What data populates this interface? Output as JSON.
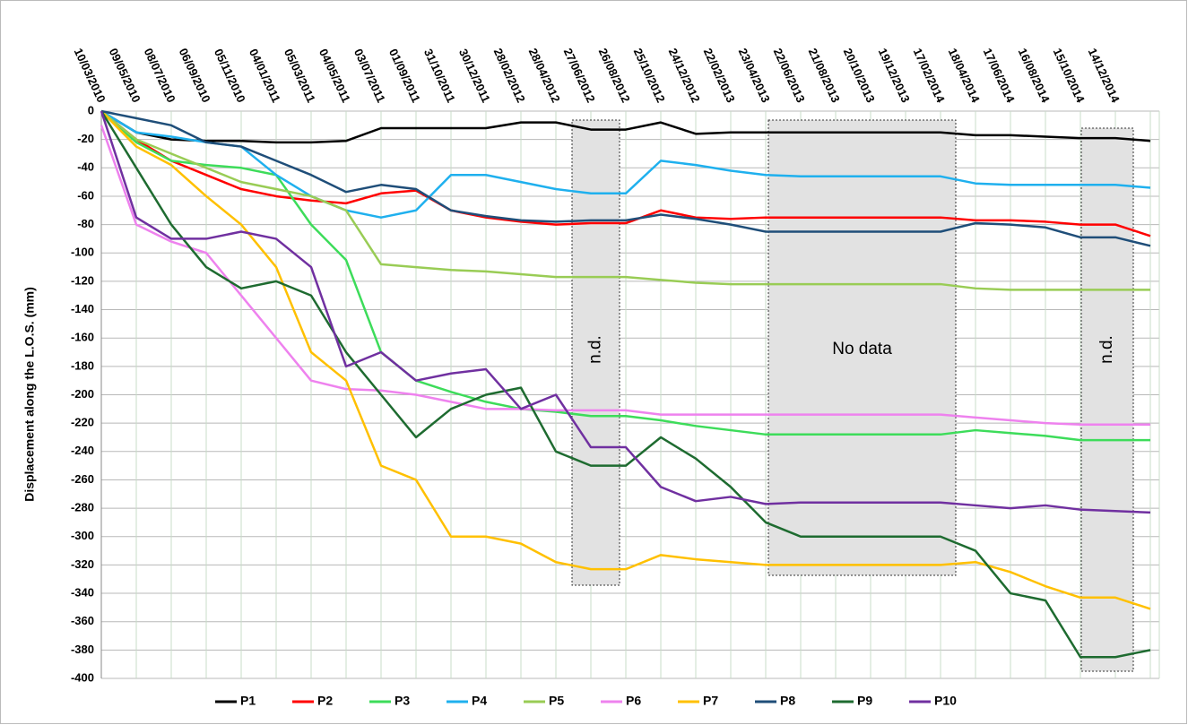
{
  "chart_data": {
    "type": "line",
    "ylabel": "Displacement along the L.O.S. (mm)",
    "categories": [
      "10/03/2010",
      "09/05/2010",
      "08/07/2010",
      "06/09/2010",
      "05/11/2010",
      "04/01/2011",
      "05/03/2011",
      "04/05/2011",
      "03/07/2011",
      "01/09/2011",
      "31/10/2011",
      "30/12/2011",
      "28/02/2012",
      "28/04/2012",
      "27/06/2012",
      "26/08/2012",
      "25/10/2012",
      "24/12/2012",
      "22/02/2013",
      "23/04/2013",
      "22/06/2013",
      "21/08/2013",
      "20/10/2013",
      "19/12/2013",
      "17/02/2014",
      "18/04/2014",
      "17/06/2014",
      "16/08/2014",
      "15/10/2014",
      "14/12/2014",
      null
    ],
    "ylim": [
      0,
      -400
    ],
    "yticks": [
      0,
      -20,
      -40,
      -60,
      -80,
      -100,
      -120,
      -140,
      -160,
      -180,
      -200,
      -220,
      -240,
      -260,
      -280,
      -300,
      -320,
      -340,
      -360,
      -380,
      -400
    ],
    "grid": true,
    "legend": "bottom",
    "annotations": [
      "n.d.",
      "No data",
      "n.d."
    ],
    "series": [
      {
        "name": "P1",
        "color": "#000000",
        "values": [
          0,
          -15,
          -20,
          -21,
          -21,
          -22,
          -22,
          -21,
          -12,
          -12,
          -12,
          -12,
          -8,
          -8,
          -13,
          -13,
          -8,
          -16,
          -15,
          -15,
          -15,
          -15,
          -15,
          -15,
          -15,
          -17,
          -17,
          -18,
          -19,
          -19,
          -21
        ]
      },
      {
        "name": "P2",
        "color": "#ff0000",
        "values": [
          0,
          -20,
          -35,
          -45,
          -55,
          -60,
          -63,
          -65,
          -58,
          -56,
          -70,
          -75,
          -78,
          -80,
          -79,
          -79,
          -70,
          -75,
          -76,
          -75,
          -75,
          -75,
          -75,
          -75,
          -75,
          -77,
          -77,
          -78,
          -80,
          -80,
          -88
        ]
      },
      {
        "name": "P3",
        "color": "#3ddc5a",
        "values": [
          0,
          -22,
          -35,
          -38,
          -40,
          -45,
          -80,
          -105,
          -170,
          -190,
          -198,
          -205,
          -210,
          -212,
          -215,
          -215,
          -218,
          -222,
          -225,
          -228,
          -228,
          -228,
          -228,
          -228,
          -228,
          -225,
          -227,
          -229,
          -232,
          -232,
          -232
        ]
      },
      {
        "name": "P4",
        "color": "#1fb0ee",
        "values": [
          0,
          -15,
          -18,
          -22,
          -25,
          -45,
          -60,
          -70,
          -75,
          -70,
          -45,
          -45,
          -50,
          -55,
          -58,
          -58,
          -35,
          -38,
          -42,
          -45,
          -46,
          -46,
          -46,
          -46,
          -46,
          -51,
          -52,
          -52,
          -52,
          -52,
          -54
        ]
      },
      {
        "name": "P5",
        "color": "#99cc55",
        "values": [
          0,
          -20,
          -30,
          -40,
          -50,
          -55,
          -60,
          -70,
          -108,
          -110,
          -112,
          -113,
          -115,
          -117,
          -117,
          -117,
          -119,
          -121,
          -122,
          -122,
          -122,
          -122,
          -122,
          -122,
          -122,
          -125,
          -126,
          -126,
          -126,
          -126,
          -126
        ]
      },
      {
        "name": "P6",
        "color": "#ee82ee",
        "values": [
          -10,
          -80,
          -92,
          -100,
          -130,
          -160,
          -190,
          -196,
          -197,
          -200,
          -205,
          -210,
          -210,
          -211,
          -211,
          -211,
          -214,
          -214,
          -214,
          -214,
          -214,
          -214,
          -214,
          -214,
          -214,
          -216,
          -218,
          -220,
          -221,
          -221,
          -221
        ]
      },
      {
        "name": "P7",
        "color": "#ffc000",
        "values": [
          0,
          -25,
          -38,
          -60,
          -80,
          -110,
          -170,
          -190,
          -250,
          -260,
          -300,
          -300,
          -305,
          -318,
          -323,
          -323,
          -313,
          -316,
          -318,
          -320,
          -320,
          -320,
          -320,
          -320,
          -320,
          -318,
          -325,
          -335,
          -343,
          -343,
          -351
        ]
      },
      {
        "name": "P8",
        "color": "#1f4e79",
        "values": [
          0,
          -5,
          -10,
          -22,
          -25,
          -35,
          -45,
          -57,
          -52,
          -55,
          -70,
          -74,
          -77,
          -78,
          -77,
          -77,
          -73,
          -76,
          -80,
          -85,
          -85,
          -85,
          -85,
          -85,
          -85,
          -79,
          -80,
          -82,
          -89,
          -89,
          -95
        ]
      },
      {
        "name": "P9",
        "color": "#1e6b30",
        "values": [
          0,
          -40,
          -80,
          -110,
          -125,
          -120,
          -130,
          -170,
          -200,
          -230,
          -210,
          -200,
          -195,
          -240,
          -250,
          -250,
          -230,
          -245,
          -265,
          -290,
          -300,
          -300,
          -300,
          -300,
          -300,
          -310,
          -340,
          -345,
          -385,
          -385,
          -380
        ]
      },
      {
        "name": "P10",
        "color": "#7030a0",
        "values": [
          0,
          -75,
          -90,
          -90,
          -85,
          -90,
          -110,
          -180,
          -170,
          -190,
          -185,
          -182,
          -210,
          -200,
          -237,
          -237,
          -265,
          -275,
          -272,
          -277,
          -276,
          -276,
          -276,
          -276,
          -276,
          -278,
          -280,
          -278,
          -281,
          -282,
          -283
        ]
      }
    ]
  }
}
